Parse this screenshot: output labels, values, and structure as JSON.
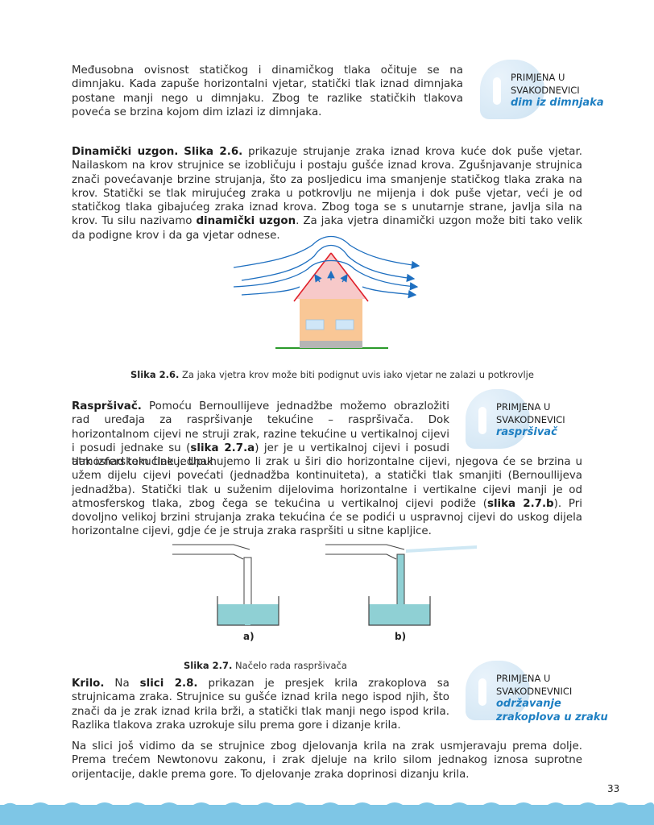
{
  "para1": "Međusobna ovisnost statičkog i dinamičkog tlaka očituje se na dimnjaku. Kada zapuše horizontalni vjetar, statički tlak iznad dimnjaka postane manji nego u dimnjaku. Zbog te razlike statičkih tlakova poveća se brzina kojom dim izlazi iz dimnjaka.",
  "callout_label_1": "PRIMJENA U",
  "callout_label_2": "SVAKODNEVICI",
  "callout1_topic": "dim iz dimnjaka",
  "sec1": {
    "heading": "Dinamički uzgon.",
    "fig_ref": "Slika 2.6.",
    "text_a": " prikazuje strujanje zraka iznad krova kuće dok puše vjetar. Nailaskom na krov strujnice se izobličuju i postaju gušće iznad krova. Zgušnjavanje strujnica znači povećavanje brzine strujanja, što za posljedicu ima smanjenje statičkog tlaka zraka na krov. Statički se tlak mirujućeg zraka u potkrovlju ne mijenja i dok puše vjetar, veći je od statičkog tlaka gibajućeg zraka iznad krova. Zbog toga se s unutarnje strane, javlja sila na krov. Tu silu nazivamo ",
    "term": "dinamički uzgon",
    "text_b": ". Za jaka vjetra dinamički uzgon može biti tako velik da podigne krov i da ga vjetar odnese."
  },
  "fig26_caption": {
    "num": "Slika 2.6.",
    "text": " Za jaka vjetra krov može biti podignut uvis iako vjetar ne zalazi u potkrovlje"
  },
  "sec2": {
    "heading": "Raspršivač.",
    "text_a": " Pomoću Bernoullijeve jednadžbe možemo obrazložiti rad uređaja za raspršivanje tekućine – raspršivača. Dok horizontalnom cijevi ne struji zrak, razine tekućine u vertikalnoj cijevi i posudi jednake su (",
    "ref_a": "slika 2.7.a",
    "text_b": ") jer je u vertikalnoj cijevi i posudi tlak iznad tekućine jednak",
    "text_c": "atmosferskom tlaku. Upuhujemo li zrak u širi dio horizontalne cijevi, njegova će se brzina u užem dijelu cijevi povećati (jednadžba kontinuiteta), a statički tlak smanjiti (Bernoullijeva jednadžba). Statički tlak u suženim dijelovima horizontalne i vertikalne cijevi manji je od atmosferskog tlaka, zbog čega se tekućina u vertikalnoj cijevi podiže (",
    "ref_b": "slika 2.7.b",
    "text_d": "). Pri dovoljno velikoj brzini strujanja zraka tekućina će se podići u uspravnoj cijevi do uskog dijela horizontalne cijevi, gdje će je struja zraka raspršiti u sitne kapljice."
  },
  "callout2_topic": "raspršivač",
  "fig27": {
    "label_a": "a)",
    "label_b": "b)"
  },
  "fig27_caption": {
    "num": "Slika 2.7.",
    "text": " Načelo rada raspršivača"
  },
  "sec3": {
    "heading": "Krilo.",
    "text_a": " Na ",
    "ref": "slici 2.8.",
    "text_b": " prikazan je presjek krila zrakoplova sa strujnicama zraka. Strujnice su gušće iznad krila nego ispod njih, što znači da je zrak iznad krila brži, a statički tlak manji nego ispod krila. Razlika tlakova zraka uzrokuje silu prema gore i dizanje krila."
  },
  "callout3_topic_1": "održavanje",
  "callout3_topic_2": "zrakoplova u zraku",
  "callout3_label_2": "SVAKODNEVNICI",
  "para_last": "Na slici još vidimo da se strujnice zbog djelovanja krila na zrak usmjeravaju prema dolje. Prema trećem Newtonovu zakonu, i zrak djeluje na krilo silom jednakog iznosa suprotne orijentacije, dakle prema gore. To djelovanje zraka doprinosi dizanju krila.",
  "page_number": "33",
  "colors": {
    "accent_blue": "#1e7fc2",
    "roof_red": "#e0202a",
    "roof_fill": "#f7c9c9",
    "wall": "#f9c796",
    "liquid": "#8fd0d4",
    "footer": "#7ec6e6"
  }
}
